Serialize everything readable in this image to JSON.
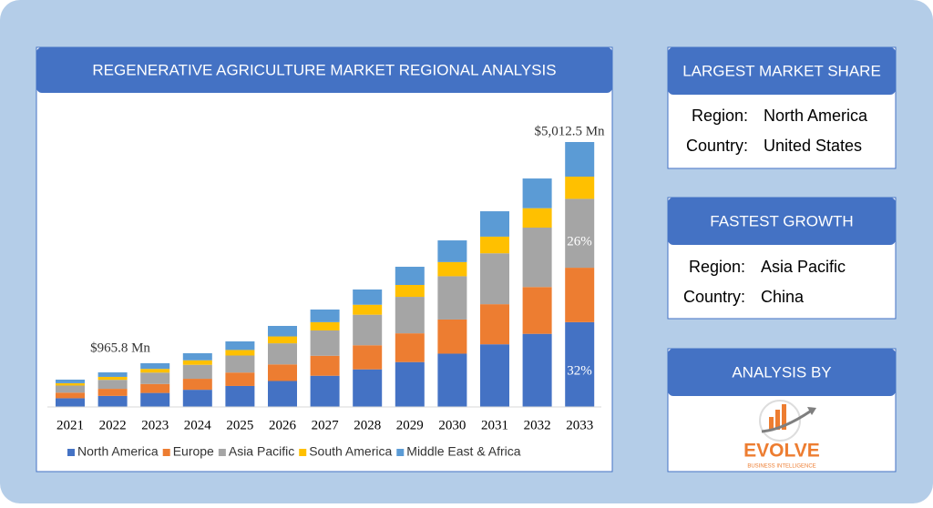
{
  "chart_data": {
    "type": "bar",
    "stacked": true,
    "title": "REGENERATIVE AGRICULTURE MARKET REGIONAL ANALYSIS",
    "categories": [
      "2021",
      "2022",
      "2023",
      "2024",
      "2025",
      "2026",
      "2027",
      "2028",
      "2029",
      "2030",
      "2031",
      "2032",
      "2033"
    ],
    "series": [
      {
        "name": "North America",
        "color": "#4472c4",
        "values": [
          165,
          209,
          265,
          325,
          397,
          491,
          590,
          711,
          849,
          1008,
          1185,
          1383,
          1604
        ]
      },
      {
        "name": "Europe",
        "color": "#ed7d31",
        "values": [
          106,
          134,
          170,
          208,
          254,
          314,
          378,
          456,
          544,
          646,
          759,
          886,
          1030
        ]
      },
      {
        "name": "Asia Pacific",
        "color": "#a5a5a5",
        "values": [
          134,
          170,
          215,
          264,
          322,
          399,
          479,
          578,
          690,
          819,
          963,
          1124,
          1303
        ]
      },
      {
        "name": "South America",
        "color": "#ffc000",
        "values": [
          44,
          56,
          70,
          86,
          105,
          130,
          157,
          189,
          225,
          268,
          315,
          367,
          420
        ]
      },
      {
        "name": "Middle East & Africa",
        "color": "#5b9bd5",
        "values": [
          68,
          85,
          107,
          133,
          162,
          199,
          239,
          288,
          344,
          410,
          480,
          562,
          655
        ]
      }
    ],
    "annotations": [
      "$965.8 Mn",
      "$5,012.5 Mn",
      "26%",
      "32%"
    ],
    "legend": "bottom"
  },
  "panels": [
    {
      "title": "LARGEST MARKET SHARE",
      "rows": [
        [
          "Region:",
          "North America"
        ],
        [
          "Country:",
          "United States"
        ]
      ]
    },
    {
      "title": "FASTEST GROWTH",
      "rows": [
        [
          "Region:",
          "Asia Pacific"
        ],
        [
          "Country:",
          "China"
        ]
      ]
    },
    {
      "title": "ANALYSIS BY",
      "logo": {
        "name": "EVOLVE",
        "tagline": "BUSINESS INTELLIGENCE"
      }
    }
  ]
}
